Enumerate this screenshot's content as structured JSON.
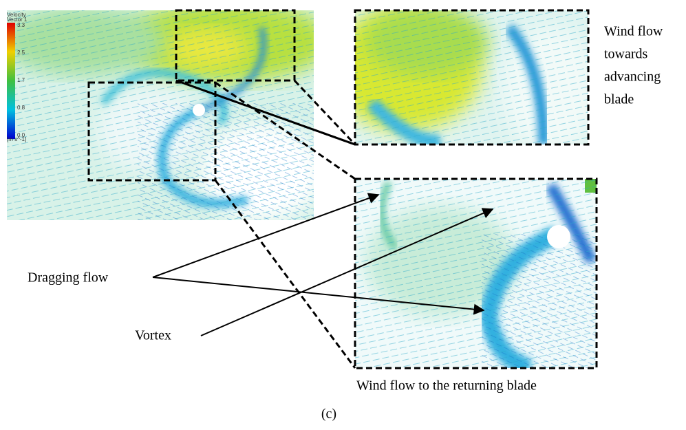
{
  "figure": {
    "legend": {
      "title": [
        "Velocity",
        "Vector 1"
      ],
      "ticks": [
        "3.3",
        "2.5",
        "1.7",
        "0.8",
        "0.0"
      ],
      "unit": "[m s^-1]"
    },
    "annotations": {
      "advancing": [
        "Wind flow",
        "towards",
        "advancing",
        "blade"
      ],
      "dragging": "Dragging flow",
      "vortex": "Vortex",
      "returning": "Wind flow to the returning blade"
    },
    "label": "(c)"
  }
}
